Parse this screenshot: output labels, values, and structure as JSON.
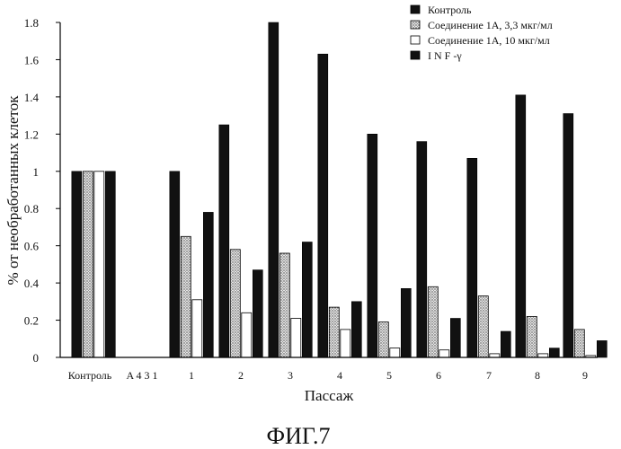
{
  "chart_data": {
    "type": "bar",
    "ylabel": "% от необработанных клеток",
    "xlabel": "Пассаж",
    "ylim": [
      0,
      1.8
    ],
    "yticks": [
      "0",
      "0.2",
      "0.4",
      "0.6",
      "0.8",
      "1",
      "1.2",
      "1.4",
      "1.6",
      "1.8"
    ],
    "grid": false,
    "legend_position": "top-right",
    "categories": [
      "Контроль",
      "A 4 3 1",
      "1",
      "2",
      "3",
      "4",
      "5",
      "6",
      "7",
      "8",
      "9"
    ],
    "series": [
      {
        "name": "Контроль",
        "values": [
          1.0,
          0,
          1.0,
          1.25,
          1.8,
          1.63,
          1.2,
          1.16,
          1.07,
          1.41,
          1.31
        ]
      },
      {
        "name": "Соединение 1А, 3,3 мкг/мл",
        "values": [
          1.0,
          0,
          0.65,
          0.58,
          0.56,
          0.27,
          0.19,
          0.38,
          0.33,
          0.22,
          0.15
        ]
      },
      {
        "name": "Соединение 1А, 10 мкг/мл",
        "values": [
          1.0,
          0,
          0.31,
          0.24,
          0.21,
          0.15,
          0.05,
          0.04,
          0.02,
          0.02,
          0.01
        ]
      },
      {
        "name": "I N F -γ",
        "values": [
          1.0,
          0,
          0.78,
          0.47,
          0.62,
          0.3,
          0.37,
          0.21,
          0.14,
          0.05,
          0.09
        ]
      }
    ]
  },
  "caption": "ФИГ.7",
  "colors": {
    "series_dark": "#111111",
    "series_dotted": "#d8d8d8",
    "series_white": "#ffffff",
    "axis": "#000000"
  }
}
